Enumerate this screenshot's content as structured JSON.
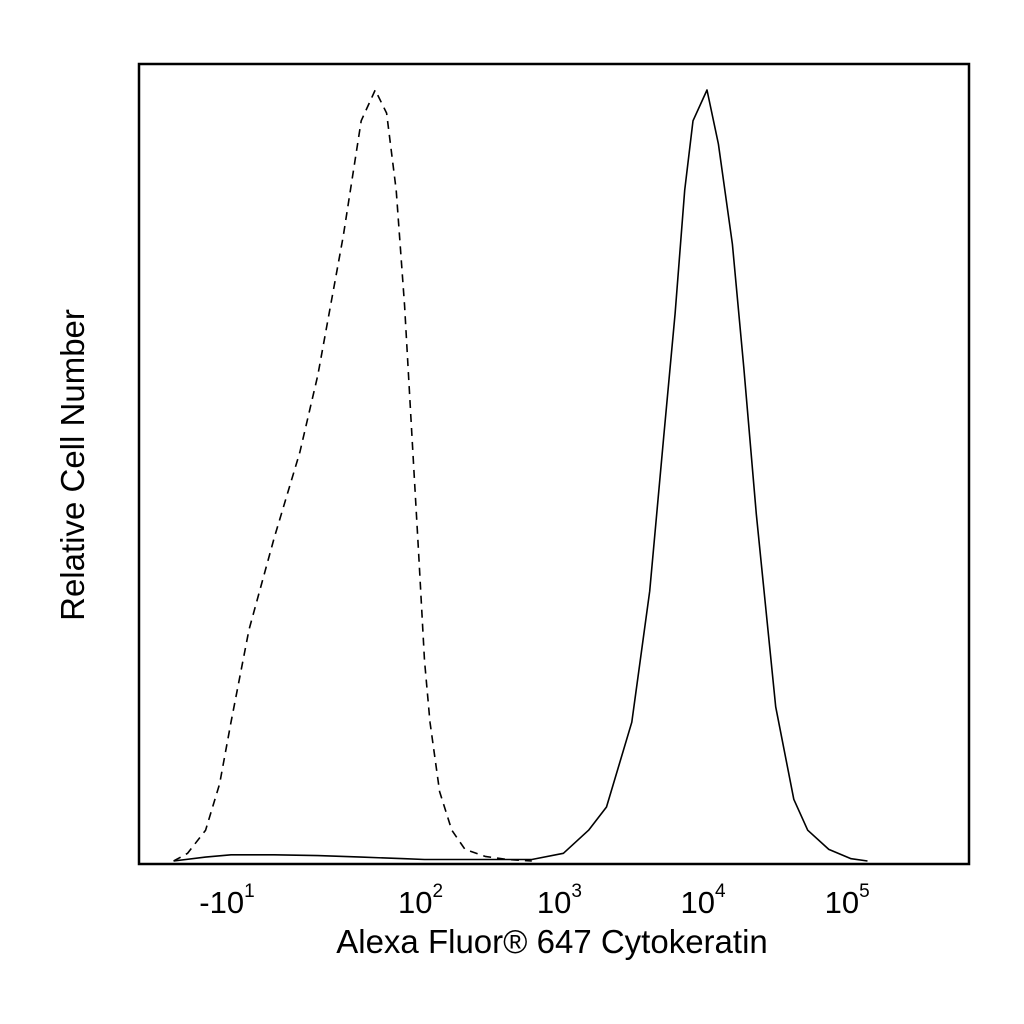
{
  "chart_data": {
    "type": "line",
    "xlabel": "Alexa Fluor® 647 Cytokeratin",
    "ylabel": "Relative Cell Number",
    "x_scale": "biexponential (log decades)",
    "grid": false,
    "legend": "none",
    "x_ticks": [
      {
        "base": "-10",
        "exp": "1",
        "value": -10
      },
      {
        "base": "10",
        "exp": "2",
        "value": 100
      },
      {
        "base": "10",
        "exp": "3",
        "value": 1000
      },
      {
        "base": "10",
        "exp": "4",
        "value": 10000
      },
      {
        "base": "10",
        "exp": "5",
        "value": 100000
      }
    ],
    "ylim": [
      0,
      1
    ],
    "series": [
      {
        "line_style": "dashed",
        "x": [
          -40,
          -30,
          -20,
          -14,
          -10,
          -5,
          0,
          5,
          10,
          20,
          30,
          40,
          50,
          60,
          70,
          80,
          90,
          100,
          110,
          130,
          160,
          200,
          280,
          400,
          600
        ],
        "y": [
          0.0,
          0.01,
          0.04,
          0.1,
          0.18,
          0.3,
          0.42,
          0.53,
          0.63,
          0.81,
          0.96,
          1.0,
          0.97,
          0.87,
          0.72,
          0.55,
          0.4,
          0.26,
          0.18,
          0.09,
          0.04,
          0.015,
          0.006,
          0.002,
          0.0
        ]
      },
      {
        "line_style": "solid",
        "x": [
          -40,
          -20,
          -10,
          0,
          10,
          30,
          70,
          100,
          400,
          600,
          1000,
          1500,
          2000,
          3000,
          4000,
          5000,
          6000,
          7000,
          8000,
          10000,
          12000,
          15000,
          18000,
          22000,
          30000,
          40000,
          50000,
          70000,
          100000,
          130000
        ],
        "y": [
          0.0,
          0.005,
          0.008,
          0.008,
          0.007,
          0.005,
          0.003,
          0.002,
          0.002,
          0.002,
          0.01,
          0.04,
          0.07,
          0.18,
          0.35,
          0.55,
          0.71,
          0.87,
          0.96,
          1.0,
          0.93,
          0.8,
          0.64,
          0.45,
          0.2,
          0.08,
          0.04,
          0.015,
          0.003,
          0.0
        ]
      }
    ]
  }
}
